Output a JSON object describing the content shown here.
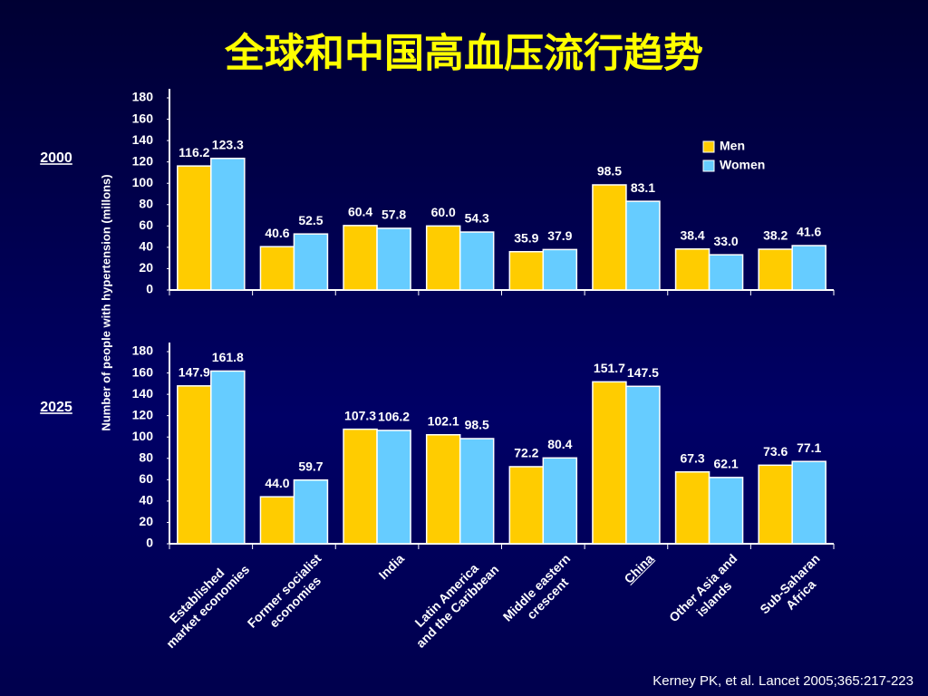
{
  "title": "全球和中国高血压流行趋势",
  "ylabel": "Number of people with hypertension (millons)",
  "source": "Kerney PK, et al. Lancet 2005;365:217-223",
  "chart_data": [
    {
      "type": "bar",
      "label": "2000",
      "series": [
        {
          "name": "Men",
          "color": "#ffcc00",
          "values": [
            116.2,
            40.6,
            60.4,
            60.0,
            35.9,
            98.5,
            38.4,
            38.2
          ],
          "value_labels": [
            "116.2",
            "40.6",
            "60.4",
            "60.0",
            "35.9",
            "98.5",
            "38.4",
            "38.2"
          ]
        },
        {
          "name": "Women",
          "color": "#66ccff",
          "values": [
            123.3,
            52.5,
            57.8,
            54.3,
            37.9,
            83.1,
            33.0,
            41.6
          ],
          "value_labels": [
            "123.3",
            "52.5",
            "57.8",
            "54.3",
            "37.9",
            "83.1",
            "33.0",
            "41.6"
          ]
        }
      ],
      "ylim": [
        0,
        180
      ],
      "yticks": [
        0,
        20,
        40,
        60,
        80,
        100,
        120,
        140,
        160,
        180
      ],
      "legend": "upper right"
    },
    {
      "type": "bar",
      "label": "2025",
      "categories": [
        "Established\nmarket economies",
        "Former socialist\neconomies",
        "India",
        "Latin America\nand the Caribbean",
        "Middle eastern\ncrescent",
        "China",
        "Other Asia and\nislands",
        "Sub-Saharan\nAfrica"
      ],
      "series": [
        {
          "name": "Men",
          "color": "#ffcc00",
          "values": [
            147.9,
            44.0,
            107.3,
            102.1,
            72.2,
            151.7,
            67.3,
            73.6
          ],
          "value_labels": [
            "147.9",
            "44.0",
            "107.3",
            "102.1",
            "72.2",
            "151.7",
            "67.3",
            "73.6"
          ]
        },
        {
          "name": "Women",
          "color": "#66ccff",
          "values": [
            161.8,
            59.7,
            106.2,
            98.5,
            80.4,
            147.5,
            62.1,
            77.1
          ],
          "value_labels": [
            "161.8",
            "59.7",
            "106.2",
            "98.5",
            "80.4",
            "147.5",
            "62.1",
            "77.1"
          ]
        }
      ],
      "ylim": [
        0,
        180
      ],
      "yticks": [
        0,
        20,
        40,
        60,
        80,
        100,
        120,
        140,
        160,
        180
      ]
    }
  ]
}
